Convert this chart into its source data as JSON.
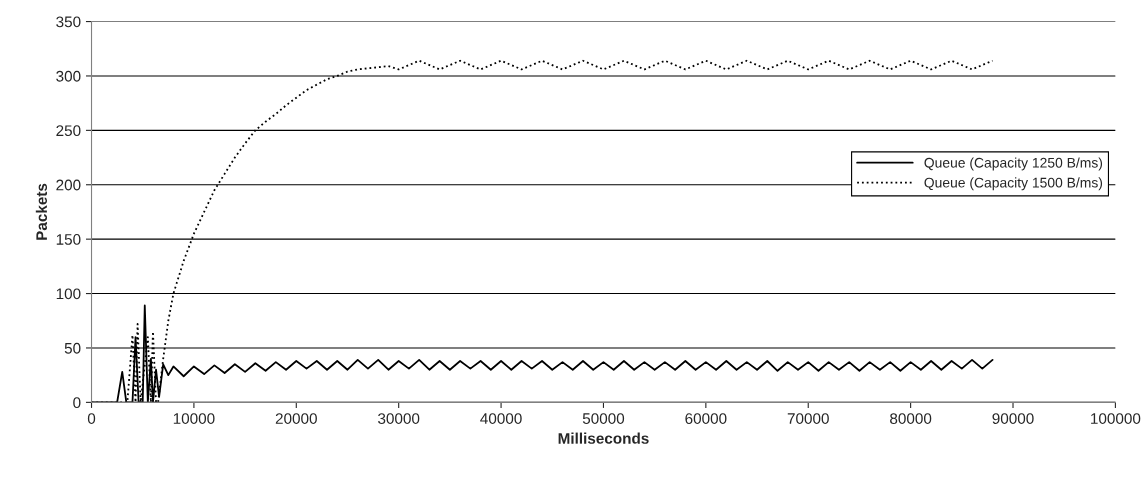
{
  "chart_data": {
    "type": "line",
    "xlabel": "Milliseconds",
    "ylabel": "Packets",
    "xlim": [
      0,
      100000
    ],
    "xticks": [
      0,
      10000,
      20000,
      30000,
      40000,
      50000,
      60000,
      70000,
      80000,
      90000,
      100000
    ],
    "ylim": [
      0,
      350
    ],
    "yticks": [
      0,
      50,
      100,
      150,
      200,
      250,
      300,
      350
    ],
    "grid": "y",
    "legend": "right",
    "series": [
      {
        "name": "Queue (Capacity 1250 B/ms)",
        "color": "#000000",
        "line_style": "solid",
        "x": [
          0,
          2500,
          3000,
          3400,
          4000,
          4300,
          4600,
          5000,
          5200,
          5500,
          5800,
          6000,
          6300,
          6600,
          7000,
          7500,
          8000,
          9000,
          10000,
          11000,
          12000,
          13000,
          14000,
          15000,
          16000,
          17000,
          18000,
          19000,
          20000,
          21000,
          22000,
          23000,
          24000,
          25000,
          26000,
          27000,
          28000,
          29000,
          30000,
          31000,
          32000,
          33000,
          34000,
          35000,
          36000,
          37000,
          38000,
          39000,
          40000,
          41000,
          42000,
          43000,
          44000,
          45000,
          46000,
          47000,
          48000,
          49000,
          50000,
          51000,
          52000,
          53000,
          54000,
          55000,
          56000,
          57000,
          58000,
          59000,
          60000,
          61000,
          62000,
          63000,
          64000,
          65000,
          66000,
          67000,
          68000,
          69000,
          70000,
          71000,
          72000,
          73000,
          74000,
          75000,
          76000,
          77000,
          78000,
          79000,
          80000,
          81000,
          82000,
          83000,
          84000,
          85000,
          86000,
          87000,
          88000
        ],
        "values": [
          0,
          0,
          28,
          0,
          0,
          60,
          0,
          0,
          89,
          0,
          40,
          0,
          30,
          5,
          35,
          25,
          33,
          24,
          33,
          26,
          34,
          27,
          35,
          28,
          36,
          29,
          37,
          30,
          38,
          31,
          38,
          30,
          38,
          30,
          39,
          31,
          39,
          30,
          38,
          31,
          39,
          30,
          38,
          30,
          38,
          31,
          38,
          30,
          38,
          30,
          38,
          31,
          38,
          30,
          37,
          30,
          38,
          30,
          37,
          30,
          38,
          30,
          37,
          30,
          37,
          30,
          38,
          30,
          37,
          30,
          38,
          30,
          37,
          30,
          38,
          29,
          37,
          30,
          37,
          29,
          37,
          30,
          37,
          29,
          37,
          30,
          37,
          29,
          37,
          30,
          38,
          30,
          38,
          31,
          39,
          31,
          39
        ]
      },
      {
        "name": "Queue (Capacity 1500 B/ms)",
        "color": "#000000",
        "line_style": "dotted",
        "x": [
          0,
          3500,
          4000,
          4300,
          4500,
          4800,
          5500,
          5800,
          6000,
          6300,
          6500,
          7000,
          7500,
          8000,
          9000,
          10000,
          11000,
          12000,
          13000,
          14000,
          15000,
          16000,
          17000,
          18000,
          19000,
          20000,
          21000,
          22000,
          23000,
          24000,
          25000,
          26000,
          27000,
          28000,
          29000,
          30000,
          32000,
          34000,
          36000,
          38000,
          40000,
          42000,
          44000,
          46000,
          48000,
          50000,
          52000,
          54000,
          56000,
          58000,
          60000,
          62000,
          64000,
          66000,
          68000,
          70000,
          72000,
          74000,
          76000,
          78000,
          80000,
          82000,
          84000,
          86000,
          88000
        ],
        "values": [
          0,
          0,
          62,
          0,
          72,
          0,
          60,
          0,
          65,
          0,
          0,
          40,
          75,
          100,
          130,
          155,
          175,
          195,
          210,
          225,
          238,
          250,
          258,
          265,
          273,
          280,
          287,
          292,
          297,
          300,
          304,
          306,
          307,
          308,
          309,
          306,
          314,
          306,
          314,
          306,
          314,
          306,
          314,
          306,
          314,
          306,
          314,
          306,
          314,
          306,
          314,
          306,
          314,
          306,
          314,
          306,
          314,
          306,
          314,
          306,
          314,
          306,
          314,
          306,
          314
        ]
      }
    ]
  }
}
